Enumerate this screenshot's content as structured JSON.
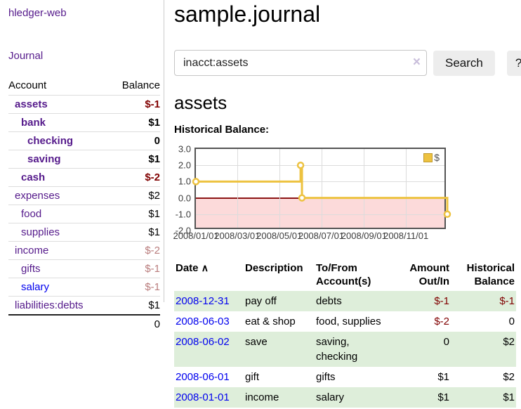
{
  "app": {
    "brand": "hledger-web",
    "nav": {
      "journal": "Journal"
    }
  },
  "sidebar": {
    "header": {
      "account": "Account",
      "balance": "Balance"
    },
    "rows": [
      {
        "account": "assets",
        "balance": "$-1",
        "indent": 1,
        "active": true,
        "balance_tone": "neg-strong",
        "link_tone": "visited"
      },
      {
        "account": "bank",
        "balance": "$1",
        "indent": 2,
        "active": true,
        "balance_tone": "normal",
        "link_tone": "visited"
      },
      {
        "account": "checking",
        "balance": "0",
        "indent": 3,
        "active": true,
        "balance_tone": "normal",
        "link_tone": "visited"
      },
      {
        "account": "saving",
        "balance": "$1",
        "indent": 3,
        "active": true,
        "balance_tone": "normal",
        "link_tone": "visited"
      },
      {
        "account": "cash",
        "balance": "$-2",
        "indent": 2,
        "active": true,
        "balance_tone": "neg-strong",
        "link_tone": "visited"
      },
      {
        "account": "expenses",
        "balance": "$2",
        "indent": 1,
        "active": false,
        "balance_tone": "normal",
        "link_tone": "visited"
      },
      {
        "account": "food",
        "balance": "$1",
        "indent": 2,
        "active": false,
        "balance_tone": "normal",
        "link_tone": "visited"
      },
      {
        "account": "supplies",
        "balance": "$1",
        "indent": 2,
        "active": false,
        "balance_tone": "normal",
        "link_tone": "visited"
      },
      {
        "account": "income",
        "balance": "$-2",
        "indent": 1,
        "active": false,
        "balance_tone": "neg-soft",
        "link_tone": "visited"
      },
      {
        "account": "gifts",
        "balance": "$-1",
        "indent": 2,
        "active": false,
        "balance_tone": "neg-soft",
        "link_tone": "visited"
      },
      {
        "account": "salary",
        "balance": "$-1",
        "indent": 2,
        "active": false,
        "balance_tone": "neg-soft",
        "link_tone": "unvisited"
      },
      {
        "account": "liabilities:debts",
        "balance": "$1",
        "indent": 1,
        "active": false,
        "balance_tone": "normal",
        "link_tone": "visited"
      }
    ],
    "total": "0"
  },
  "main": {
    "title": "sample.journal",
    "search": {
      "value": "inacct:assets",
      "clear_icon": "×",
      "button_label": "Search",
      "help_label": "?"
    },
    "heading": "assets",
    "chart_title": "Historical Balance:"
  },
  "chart_data": {
    "type": "line",
    "step": true,
    "title": "Historical Balance:",
    "legend": {
      "label": "$",
      "position": "top-right"
    },
    "ylim": [
      -2,
      3
    ],
    "yticks": [
      "3.0",
      "2.0",
      "1.0",
      "0.0",
      "-1.0",
      "-2.0"
    ],
    "xticks": [
      {
        "label": "2008/01/01",
        "date": "2008-01-01"
      },
      {
        "label": "2008/03/01",
        "date": "2008-03-01"
      },
      {
        "label": "2008/05/01",
        "date": "2008-05-01"
      },
      {
        "label": "2008/07/01",
        "date": "2008-07-01"
      },
      {
        "label": "2008/09/01",
        "date": "2008-09-01"
      },
      {
        "label": "2008/11/01",
        "date": "2008-11-01"
      }
    ],
    "series": [
      {
        "name": "$",
        "color": "#edc240",
        "points": [
          {
            "date": "2008-01-01",
            "value": 1
          },
          {
            "date": "2008-06-01",
            "value": 2
          },
          {
            "date": "2008-06-03",
            "value": 0
          },
          {
            "date": "2008-12-31",
            "value": -1
          }
        ]
      }
    ],
    "grid": {
      "on": true,
      "zero_line_color": "#8b1515",
      "negative_fill": "#fcdada"
    }
  },
  "register": {
    "sort_indicator": "∧",
    "columns": [
      {
        "label": "Date",
        "align": "left",
        "sorted": true
      },
      {
        "label": "Description",
        "align": "left"
      },
      {
        "label": "To/From Account(s)",
        "align": "left"
      },
      {
        "label": "Amount Out/In",
        "align": "right"
      },
      {
        "label": "Historical Balance",
        "align": "right"
      }
    ],
    "rows": [
      {
        "date": "2008-12-31",
        "description": "pay off",
        "accounts": "debts",
        "amount": "$-1",
        "amount_tone": "neg",
        "balance": "$-1",
        "balance_tone": "neg"
      },
      {
        "date": "2008-06-03",
        "description": "eat & shop",
        "accounts": "food, supplies",
        "amount": "$-2",
        "amount_tone": "neg",
        "balance": "0",
        "balance_tone": "normal"
      },
      {
        "date": "2008-06-02",
        "description": "save",
        "accounts": "saving, checking",
        "amount": "0",
        "amount_tone": "normal",
        "balance": "$2",
        "balance_tone": "normal"
      },
      {
        "date": "2008-06-01",
        "description": "gift",
        "accounts": "gifts",
        "amount": "$1",
        "amount_tone": "normal",
        "balance": "$2",
        "balance_tone": "normal"
      },
      {
        "date": "2008-01-01",
        "description": "income",
        "accounts": "salary",
        "amount": "$1",
        "amount_tone": "normal",
        "balance": "$1",
        "balance_tone": "normal"
      }
    ]
  },
  "colors": {
    "accent_purple": "#551a8b",
    "link_blue": "#0000ee",
    "neg_strong": "#800000",
    "neg_soft": "#b97c7c",
    "stripe_green": "#deeeda",
    "chart_line": "#edc240",
    "chart_negative_bg": "#fcdada",
    "zero_line": "#8b1515",
    "grid_line": "#dcdcdc",
    "chart_border": "#545454"
  }
}
